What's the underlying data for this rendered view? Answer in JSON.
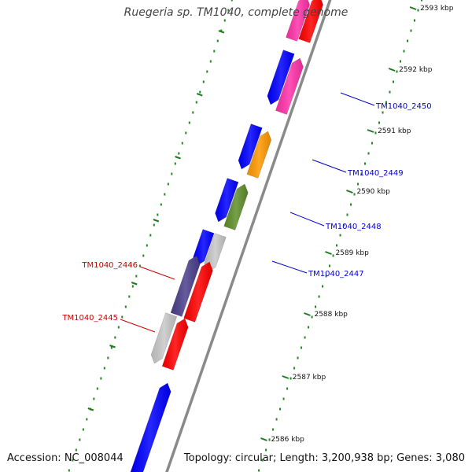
{
  "title": "Ruegeria sp. TM1040, complete genome",
  "accession": "Accession: NC_008044",
  "topology": "Topology: circular; Length: 3,200,938 bp; Genes: 3,080",
  "ticks": [
    "2593 kbp",
    "2592 kbp",
    "2591 kbp",
    "2590 kbp",
    "2589 kbp",
    "2588 kbp",
    "2587 kbp",
    "2586 kbp"
  ],
  "labels": {
    "TM1040_2450": "TM1040_2450",
    "TM1040_2449": "TM1040_2449",
    "TM1040_2448": "TM1040_2448",
    "TM1040_2447": "TM1040_2447",
    "TM1040_2446": "TM1040_2446",
    "TM1040_2445": "TM1040_2445"
  },
  "colors": {
    "backbone": "#8a8a8a",
    "forward_label": "#0000cc",
    "reverse_label": "#cc0000",
    "tick": "#1f7a1f",
    "blue": "#0000ff",
    "red": "#ff0000",
    "pink": "#ff33aa",
    "orange": "#ff9900",
    "olive": "#5f8f2a",
    "gray": "#c8c8c8",
    "slate": "#4b3f8c"
  }
}
